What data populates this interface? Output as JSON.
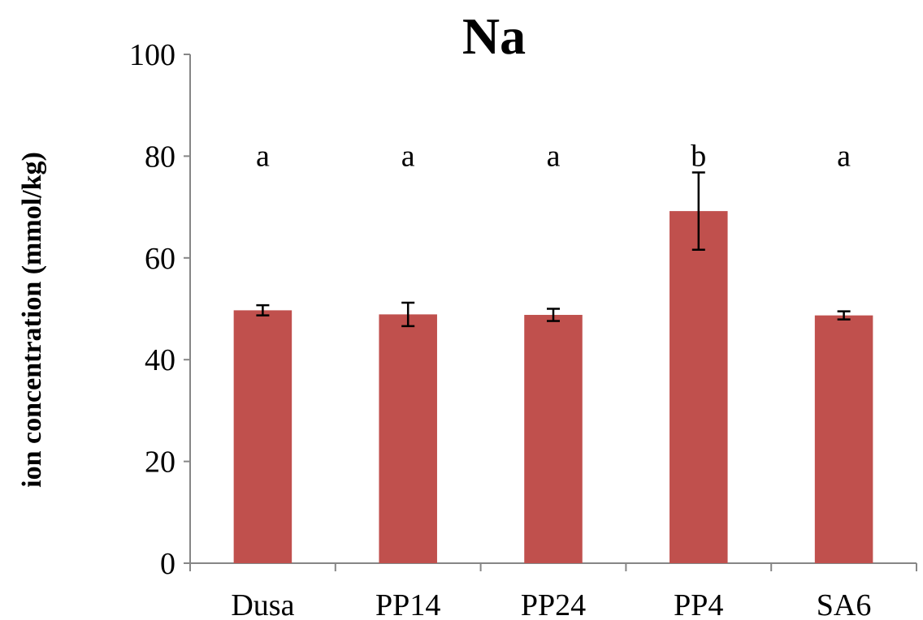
{
  "chart_data": {
    "type": "bar",
    "title": "Na",
    "xlabel": "",
    "ylabel": "ion concentration  (mmol/kg)",
    "categories": [
      "Dusa",
      "PP14",
      "PP24",
      "PP4",
      "SA6"
    ],
    "values": [
      49.7,
      48.9,
      48.8,
      69.2,
      48.7
    ],
    "error": [
      1.0,
      2.3,
      1.2,
      7.6,
      0.8
    ],
    "significance_letters": [
      "a",
      "a",
      "a",
      "b",
      "a"
    ],
    "ylim": [
      0,
      100
    ],
    "yticks": [
      0,
      20,
      40,
      60,
      80,
      100
    ],
    "letter_y": 80,
    "bar_color": "#c0504d",
    "grid": false,
    "legend": "none"
  }
}
